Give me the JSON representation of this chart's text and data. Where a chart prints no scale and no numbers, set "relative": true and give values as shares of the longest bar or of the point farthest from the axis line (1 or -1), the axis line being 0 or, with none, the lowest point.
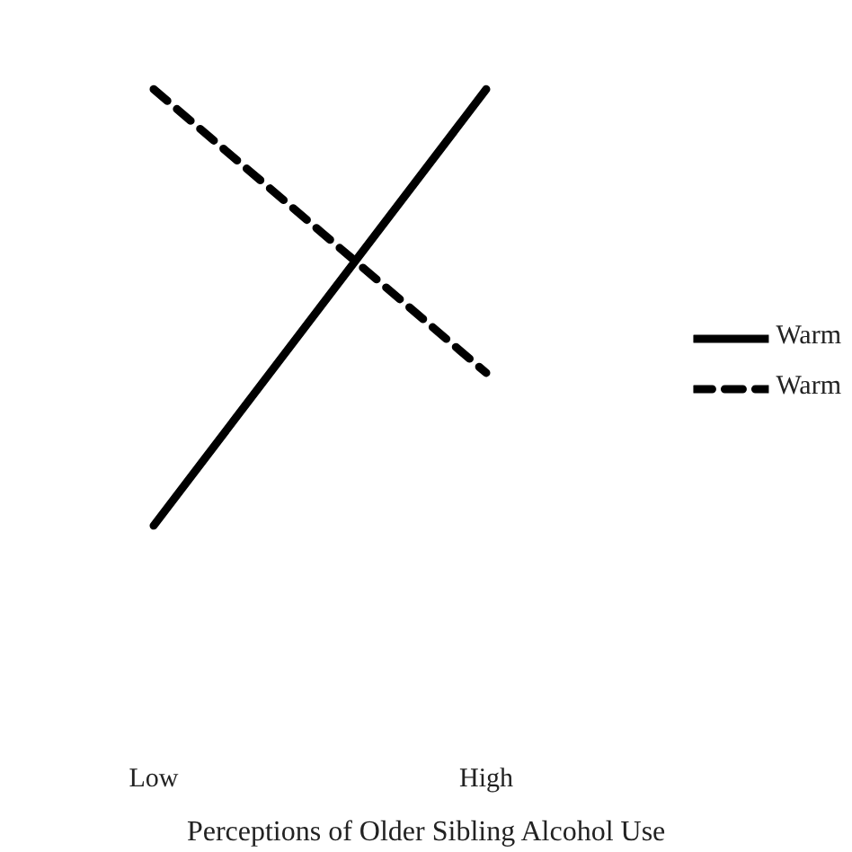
{
  "chart_data": {
    "type": "line",
    "relative": true,
    "xlabel": "Perceptions of Older Sibling Alcohol Use",
    "categories": [
      "Low",
      "High"
    ],
    "series": [
      {
        "name": "Warm",
        "color": "#000000",
        "values": [
          0,
          1
        ],
        "line_style": "solid"
      },
      {
        "name": "Warm",
        "color": "#000000",
        "values": [
          1,
          0.35
        ],
        "line_style": "dashed"
      }
    ],
    "legend": "right"
  }
}
